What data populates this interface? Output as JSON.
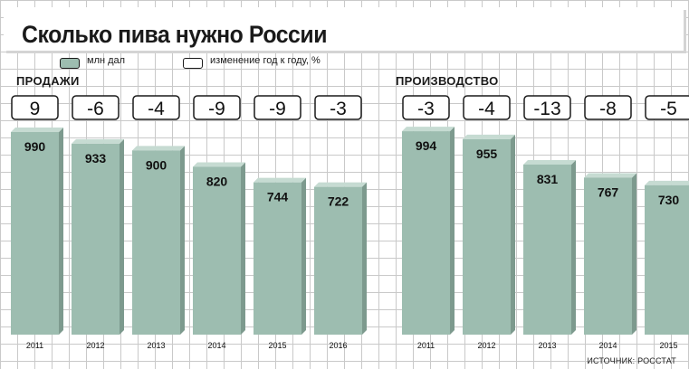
{
  "title": "Сколько пива нужно России",
  "legend": {
    "bar_label": "млн дал",
    "change_label": "изменение год к году, %"
  },
  "source": "ИСТОЧНИК: РОССТАТ",
  "colors": {
    "bar": "#9dbdb0",
    "bar_side": "#7d9a8e",
    "bar_top": "#c6dbd2",
    "outline": "#1a1a1a"
  },
  "chart_data": [
    {
      "type": "bar",
      "title": "ПРОДАЖИ",
      "unit": "млн дал",
      "categories": [
        "2011",
        "2012",
        "2013",
        "2014",
        "2015",
        "2016"
      ],
      "values": [
        990,
        933,
        900,
        820,
        744,
        722
      ],
      "change_pct": [
        "9",
        "-6",
        "-4",
        "-9",
        "-9",
        "-3"
      ]
    },
    {
      "type": "bar",
      "title": "ПРОИЗВОДСТВО",
      "unit": "млн дал",
      "categories": [
        "2011",
        "2012",
        "2013",
        "2014",
        "2015"
      ],
      "values": [
        994,
        955,
        831,
        767,
        730
      ],
      "change_pct": [
        "-3",
        "-4",
        "-13",
        "-8",
        "-5"
      ]
    }
  ]
}
